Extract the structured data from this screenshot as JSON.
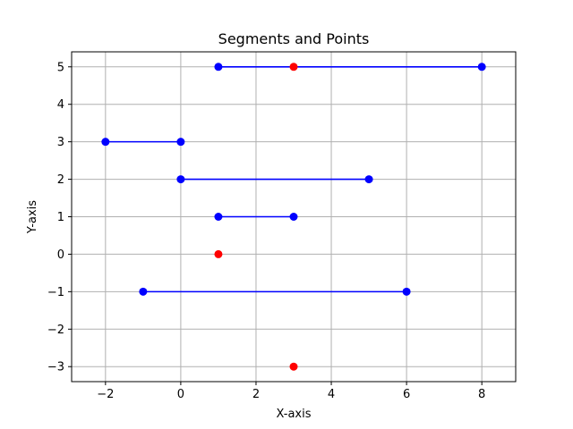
{
  "chart_data": {
    "type": "scatter",
    "title": "Segments and Points",
    "xlabel": "X-axis",
    "ylabel": "Y-axis",
    "xlim": [
      -2.9,
      8.9
    ],
    "ylim": [
      -3.4,
      5.4
    ],
    "xticks": [
      -2,
      0,
      2,
      4,
      6,
      8
    ],
    "yticks": [
      -3,
      -2,
      -1,
      0,
      1,
      2,
      3,
      4,
      5
    ],
    "grid": true,
    "segment_color": "#0000ff",
    "point_color": "#ff0000",
    "segments": [
      {
        "x1": 1,
        "y1": 5,
        "x2": 8,
        "y2": 5
      },
      {
        "x1": -2,
        "y1": 3,
        "x2": 0,
        "y2": 3
      },
      {
        "x1": 0,
        "y1": 2,
        "x2": 5,
        "y2": 2
      },
      {
        "x1": 1,
        "y1": 1,
        "x2": 3,
        "y2": 1
      },
      {
        "x1": -1,
        "y1": -1,
        "x2": 6,
        "y2": -1
      }
    ],
    "points": [
      {
        "x": 3,
        "y": 5
      },
      {
        "x": 1,
        "y": 0
      },
      {
        "x": 3,
        "y": -3
      }
    ]
  }
}
